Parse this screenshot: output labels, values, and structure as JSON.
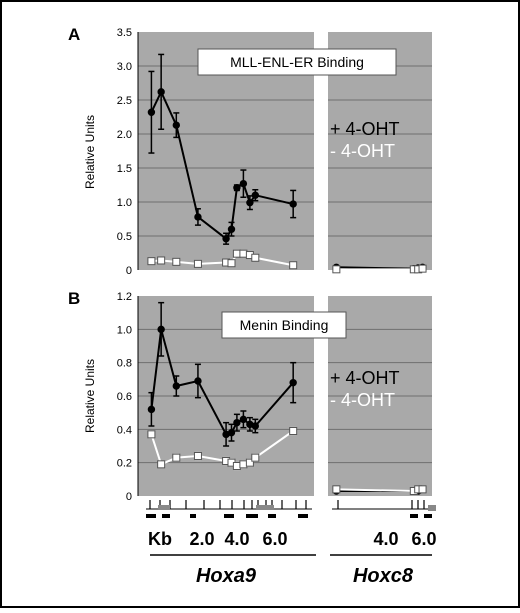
{
  "colors": {
    "panel_bg": "#a9a9a9",
    "grid": "#6f6f6f",
    "plus_series": "#000000",
    "minus_series": "#ffffff",
    "label_box": "#ffffff"
  },
  "bottom_axis": {
    "unit_label": "Kb",
    "left_ticks": [
      "2.0",
      "4.0",
      "6.0"
    ],
    "right_ticks": [
      "4.0",
      "6.0"
    ],
    "left_gene": "Hoxa9",
    "right_gene": "Hoxc8"
  },
  "chart_data": [
    {
      "type": "line",
      "panel_letter": "A",
      "title": "MLL-ENL-ER Binding",
      "xlabel": "",
      "ylabel": "Relative Units",
      "ylim": [
        0,
        3.5
      ],
      "yticks": [
        "0",
        "0.5",
        "1.0",
        "1.5",
        "2.0",
        "2.5",
        "3.0",
        "3.5"
      ],
      "xlim": [
        0.6,
        7.9
      ],
      "right_xlim": [
        2.6,
        7.0
      ],
      "legend": [
        "+ 4-OHT",
        "- 4-OHT"
      ],
      "legend_position": "right",
      "grid": true,
      "series": [
        {
          "name": "+ 4-OHT",
          "panel": "Hoxa9",
          "x": [
            0.85,
            1.3,
            2.0,
            3.0,
            4.3,
            4.55,
            4.8,
            5.1,
            5.4,
            5.65,
            7.4
          ],
          "y": [
            2.32,
            2.62,
            2.13,
            0.78,
            0.46,
            0.6,
            1.21,
            1.27,
            0.99,
            1.1,
            0.97
          ],
          "err": [
            0.6,
            0.55,
            0.18,
            0.12,
            0.08,
            0.1,
            0.04,
            0.2,
            0.1,
            0.08,
            0.2
          ]
        },
        {
          "name": "- 4-OHT",
          "panel": "Hoxa9",
          "x": [
            0.85,
            1.3,
            2.0,
            3.0,
            4.3,
            4.55,
            4.8,
            5.1,
            5.4,
            5.65,
            7.4
          ],
          "y": [
            0.13,
            0.14,
            0.12,
            0.09,
            0.11,
            0.1,
            0.24,
            0.24,
            0.22,
            0.18,
            0.07
          ],
          "err": [
            0.02,
            0.02,
            0.02,
            0.02,
            0.02,
            0.02,
            0.03,
            0.03,
            0.03,
            0.02,
            0.02
          ]
        },
        {
          "name": "+ 4-OHT",
          "panel": "Hoxc8",
          "x": [
            2.8,
            6.35,
            6.55,
            6.75
          ],
          "y": [
            0.04,
            0.02,
            0.03,
            0.04
          ],
          "err": [
            0.0,
            0.0,
            0.0,
            0.0
          ]
        },
        {
          "name": "- 4-OHT",
          "panel": "Hoxc8",
          "x": [
            2.8,
            6.35,
            6.55,
            6.75
          ],
          "y": [
            0.01,
            0.01,
            0.01,
            0.02
          ],
          "err": [
            0.0,
            0.0,
            0.0,
            0.0
          ]
        }
      ]
    },
    {
      "type": "line",
      "panel_letter": "B",
      "title": "Menin Binding",
      "xlabel": "",
      "ylabel": "Relative Units",
      "ylim": [
        0,
        1.2
      ],
      "yticks": [
        "0",
        "0.2",
        "0.4",
        "0.6",
        "0.8",
        "1.0",
        "1.2"
      ],
      "xlim": [
        0.6,
        7.9
      ],
      "right_xlim": [
        2.6,
        7.0
      ],
      "legend": [
        "+ 4-OHT",
        "- 4-OHT"
      ],
      "legend_position": "right",
      "grid": true,
      "series": [
        {
          "name": "+ 4-OHT",
          "panel": "Hoxa9",
          "x": [
            0.85,
            1.3,
            2.0,
            3.0,
            4.3,
            4.55,
            4.8,
            5.1,
            5.4,
            5.65,
            7.4
          ],
          "y": [
            0.52,
            1.0,
            0.66,
            0.69,
            0.37,
            0.38,
            0.44,
            0.46,
            0.43,
            0.42,
            0.68
          ],
          "err": [
            0.1,
            0.16,
            0.06,
            0.1,
            0.07,
            0.05,
            0.05,
            0.05,
            0.04,
            0.04,
            0.12
          ]
        },
        {
          "name": "- 4-OHT",
          "panel": "Hoxa9",
          "x": [
            0.85,
            1.3,
            2.0,
            3.0,
            4.3,
            4.55,
            4.8,
            5.1,
            5.4,
            5.65,
            7.4
          ],
          "y": [
            0.37,
            0.19,
            0.23,
            0.24,
            0.21,
            0.2,
            0.18,
            0.19,
            0.2,
            0.23,
            0.39
          ],
          "err": [
            0.02,
            0.01,
            0.02,
            0.02,
            0.02,
            0.02,
            0.02,
            0.02,
            0.02,
            0.02,
            0.02
          ]
        },
        {
          "name": "+ 4-OHT",
          "panel": "Hoxc8",
          "x": [
            2.8,
            6.35,
            6.55,
            6.75
          ],
          "y": [
            0.03,
            0.03,
            0.03,
            0.04
          ],
          "err": [
            0.0,
            0.0,
            0.0,
            0.0
          ]
        },
        {
          "name": "- 4-OHT",
          "panel": "Hoxc8",
          "x": [
            2.8,
            6.35,
            6.55,
            6.75
          ],
          "y": [
            0.04,
            0.03,
            0.04,
            0.04
          ],
          "err": [
            0.0,
            0.0,
            0.0,
            0.0
          ]
        }
      ]
    }
  ]
}
